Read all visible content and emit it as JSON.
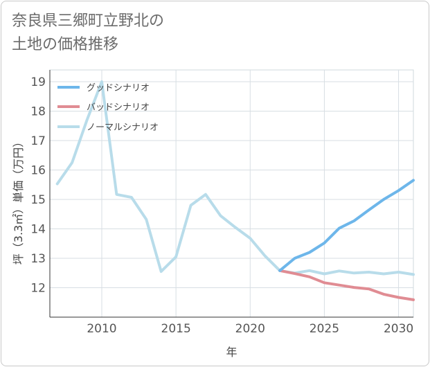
{
  "page": {
    "title": "奈良県三郷町立野北の\n土地の価格推移"
  },
  "chart_data": {
    "type": "line",
    "title": "奈良県三郷町立野北の土地の価格推移",
    "xlabel": "年",
    "ylabel": "坪（3.3㎡）単価（万円）",
    "xlim": [
      2006.5,
      2031
    ],
    "ylim": [
      11,
      19.4
    ],
    "x_ticks": [
      2010,
      2015,
      2020,
      2025,
      2030
    ],
    "y_ticks": [
      12,
      13,
      14,
      15,
      16,
      17,
      18,
      19
    ],
    "grid": true,
    "legend_position": "top-left",
    "series": [
      {
        "name": "グッドシナリオ",
        "color": "#6db6ea",
        "x": [
          2022,
          2023,
          2024,
          2025,
          2026,
          2027,
          2028,
          2029,
          2030,
          2031
        ],
        "y": [
          12.58,
          13.0,
          13.2,
          13.52,
          14.02,
          14.27,
          14.64,
          15.0,
          15.3,
          15.65
        ]
      },
      {
        "name": "バッドシナリオ",
        "color": "#e08c93",
        "x": [
          2022,
          2023,
          2024,
          2025,
          2026,
          2027,
          2028,
          2029,
          2030,
          2031
        ],
        "y": [
          12.58,
          12.48,
          12.37,
          12.17,
          12.09,
          12.01,
          11.96,
          11.78,
          11.67,
          11.59
        ]
      },
      {
        "name": "ノーマルシナリオ",
        "color": "#b8dcea",
        "x": [
          2007,
          2008,
          2009,
          2010,
          2011,
          2012,
          2013,
          2014,
          2015,
          2016,
          2017,
          2018,
          2019,
          2020,
          2021,
          2022,
          2023,
          2024,
          2025,
          2026,
          2027,
          2028,
          2029,
          2030,
          2031
        ],
        "y": [
          15.53,
          16.25,
          17.7,
          19.0,
          15.17,
          15.07,
          14.32,
          12.55,
          13.05,
          14.8,
          15.17,
          14.45,
          14.05,
          13.68,
          13.08,
          12.58,
          12.5,
          12.58,
          12.47,
          12.57,
          12.5,
          12.53,
          12.47,
          12.53,
          12.45
        ]
      }
    ]
  }
}
